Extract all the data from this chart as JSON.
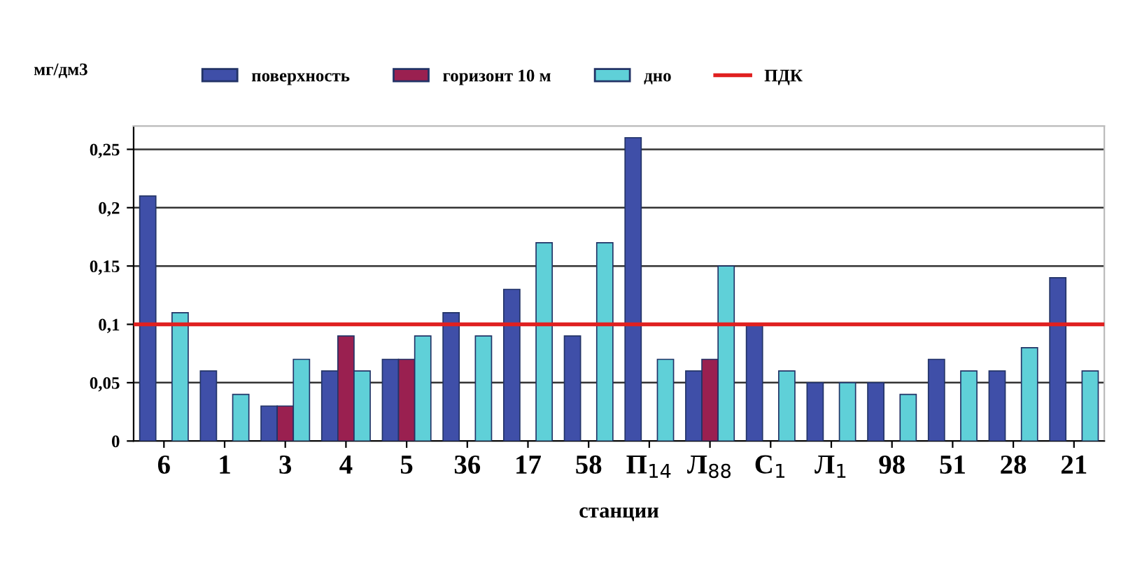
{
  "chart_data": {
    "type": "bar",
    "xlabel": "станции",
    "ylabel": "мг/дм3",
    "categories": [
      "6",
      "1",
      "3",
      "4",
      "5",
      "36",
      "17",
      "58",
      "П$_{14}$",
      "Л$_{88}$",
      "С$_{1}$",
      "Л$_{1}$",
      "98",
      "51",
      "28",
      "21"
    ],
    "series": [
      {
        "name": "поверхность",
        "color": "#3f4fa8",
        "values": [
          0.21,
          0.06,
          0.03,
          0.06,
          0.07,
          0.11,
          0.13,
          0.09,
          0.26,
          0.06,
          0.1,
          0.05,
          0.05,
          0.07,
          0.06,
          0.14
        ]
      },
      {
        "name": "горизонт 10 м",
        "color": "#9a2050",
        "values": [
          null,
          null,
          0.03,
          0.09,
          0.07,
          null,
          null,
          null,
          null,
          0.07,
          null,
          null,
          null,
          null,
          null,
          null
        ]
      },
      {
        "name": "дно",
        "color": "#5fd0d8",
        "values": [
          0.11,
          0.04,
          0.07,
          0.06,
          0.09,
          0.09,
          0.17,
          0.17,
          0.07,
          0.15,
          0.06,
          0.05,
          0.04,
          0.06,
          0.08,
          0.06
        ]
      }
    ],
    "ref_lines": [
      {
        "axis": "y",
        "value": 0.1,
        "label": "ПДК",
        "color": "#e02020"
      }
    ],
    "ylim": [
      0,
      0.27
    ],
    "yticks": [
      {
        "value": 0,
        "label": "0"
      },
      {
        "value": 0.05,
        "label": "0,05"
      },
      {
        "value": 0.1,
        "label": "0,1"
      },
      {
        "value": 0.15,
        "label": "0,15"
      },
      {
        "value": 0.2,
        "label": "0,2"
      },
      {
        "value": 0.25,
        "label": "0,25"
      }
    ],
    "grid": "y",
    "legend": "top"
  }
}
